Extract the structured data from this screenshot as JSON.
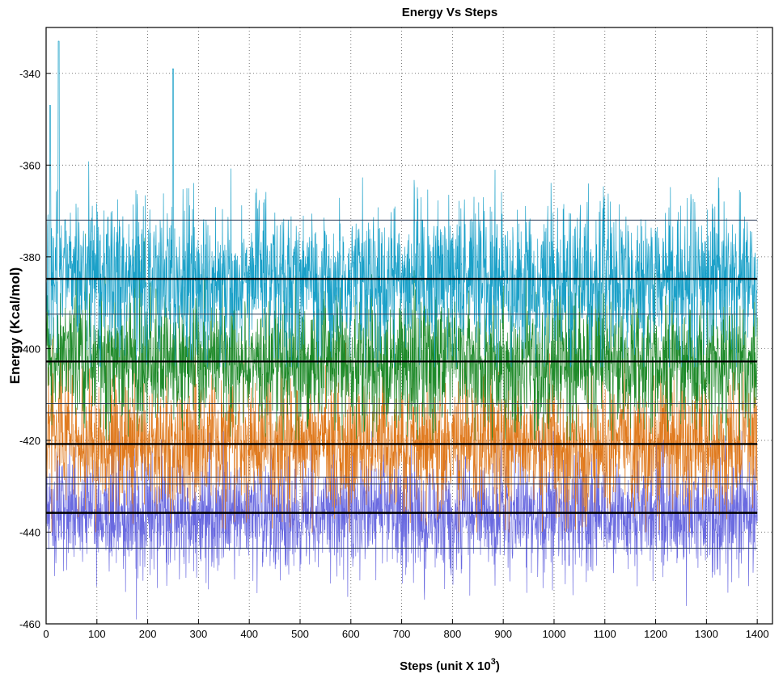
{
  "chart_data": {
    "type": "line",
    "title": "Energy Vs Steps",
    "xlabel": "Steps (unit X 10",
    "xlabel_sup": "3",
    "xlabel_end": ")",
    "ylabel": "Energy (Kcal/mol)",
    "xlim": [
      0,
      1430
    ],
    "ylim": [
      -460,
      -330
    ],
    "x_ticks": [
      0,
      100,
      200,
      300,
      400,
      500,
      600,
      700,
      800,
      900,
      1000,
      1100,
      1200,
      1300,
      1400
    ],
    "y_ticks": [
      -340,
      -360,
      -380,
      -400,
      -420,
      -440,
      -460
    ],
    "grid": true,
    "series": [
      {
        "name": "cyan",
        "color": "#1aa0c8",
        "x_range": [
          0,
          1400
        ],
        "mean": -384.8,
        "std": 9.5,
        "min": -404,
        "max": -333,
        "peak": [
          [
            25,
            -333
          ],
          [
            250,
            -339
          ],
          [
            8,
            -347
          ]
        ]
      },
      {
        "name": "green",
        "color": "#1f8a2a",
        "x_range": [
          0,
          1400
        ],
        "mean": -402.8,
        "std": 9.0,
        "min": -420,
        "max": -375
      },
      {
        "name": "orange",
        "color": "#e07a1e",
        "x_range": [
          0,
          1400
        ],
        "mean": -420.8,
        "std": 8.5,
        "min": -440,
        "max": -398
      },
      {
        "name": "purple",
        "color": "#6a6ae0",
        "x_range": [
          0,
          1400
        ],
        "mean": -435.8,
        "std": 7.5,
        "min": -459,
        "max": -418
      }
    ],
    "reference_lines": [
      {
        "y": -372.0,
        "style": "thin"
      },
      {
        "y": -384.8,
        "style": "thick"
      },
      {
        "y": -392.5,
        "style": "thin"
      },
      {
        "y": -402.8,
        "style": "thick"
      },
      {
        "y": -412.0,
        "style": "thin"
      },
      {
        "y": -414.0,
        "style": "thin"
      },
      {
        "y": -420.8,
        "style": "thick"
      },
      {
        "y": -428.0,
        "style": "thin"
      },
      {
        "y": -429.5,
        "style": "thin"
      },
      {
        "y": -435.8,
        "style": "thick"
      },
      {
        "y": -443.5,
        "style": "thin"
      }
    ]
  }
}
